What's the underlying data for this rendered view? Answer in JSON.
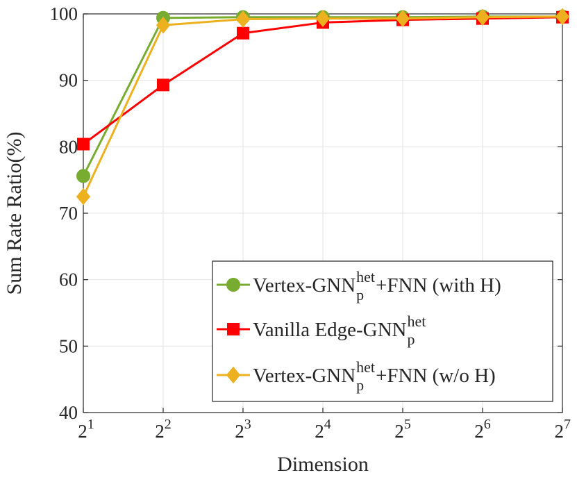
{
  "chart_data": {
    "type": "line",
    "xlabel": "Dimension",
    "ylabel": "Sum Rate Ratio(%)",
    "x_exponents": [
      1,
      2,
      3,
      4,
      5,
      6,
      7
    ],
    "x_tick_base": "2",
    "x_tick_labels": [
      "1",
      "2",
      "3",
      "4",
      "5",
      "6",
      "7"
    ],
    "y_tick_labels": [
      "40",
      "50",
      "60",
      "70",
      "80",
      "90",
      "100"
    ],
    "y_ticks": [
      40,
      50,
      60,
      70,
      80,
      90,
      100
    ],
    "xlim": [
      1,
      7
    ],
    "ylim": [
      40,
      100
    ],
    "grid": true,
    "legend_position": "bottom-right",
    "series": [
      {
        "name": "Vertex-GNN_p^het+FNN (with H)",
        "legend_main": "Vertex-GNN",
        "legend_sub": "p",
        "legend_sup": "het",
        "legend_tail": "+FNN (with H)",
        "marker": "circle",
        "color": "#77ac30",
        "values": [
          75.6,
          99.4,
          99.5,
          99.5,
          99.5,
          99.6,
          99.6
        ]
      },
      {
        "name": "Vanilla Edge-GNN_p^het",
        "legend_main": "Vanilla Edge-GNN",
        "legend_sub": "p",
        "legend_sup": "het",
        "legend_tail": "",
        "marker": "square",
        "color": "#ff0000",
        "values": [
          80.4,
          89.3,
          97.1,
          98.7,
          99.1,
          99.3,
          99.5
        ]
      },
      {
        "name": "Vertex-GNN_p^het+FNN (w/o H)",
        "legend_main": "Vertex-GNN",
        "legend_sub": "p",
        "legend_sup": "het",
        "legend_tail": "+FNN (w/o H)",
        "marker": "diamond",
        "color": "#edb120",
        "values": [
          72.5,
          98.3,
          99.2,
          99.3,
          99.3,
          99.5,
          99.6
        ]
      }
    ]
  }
}
